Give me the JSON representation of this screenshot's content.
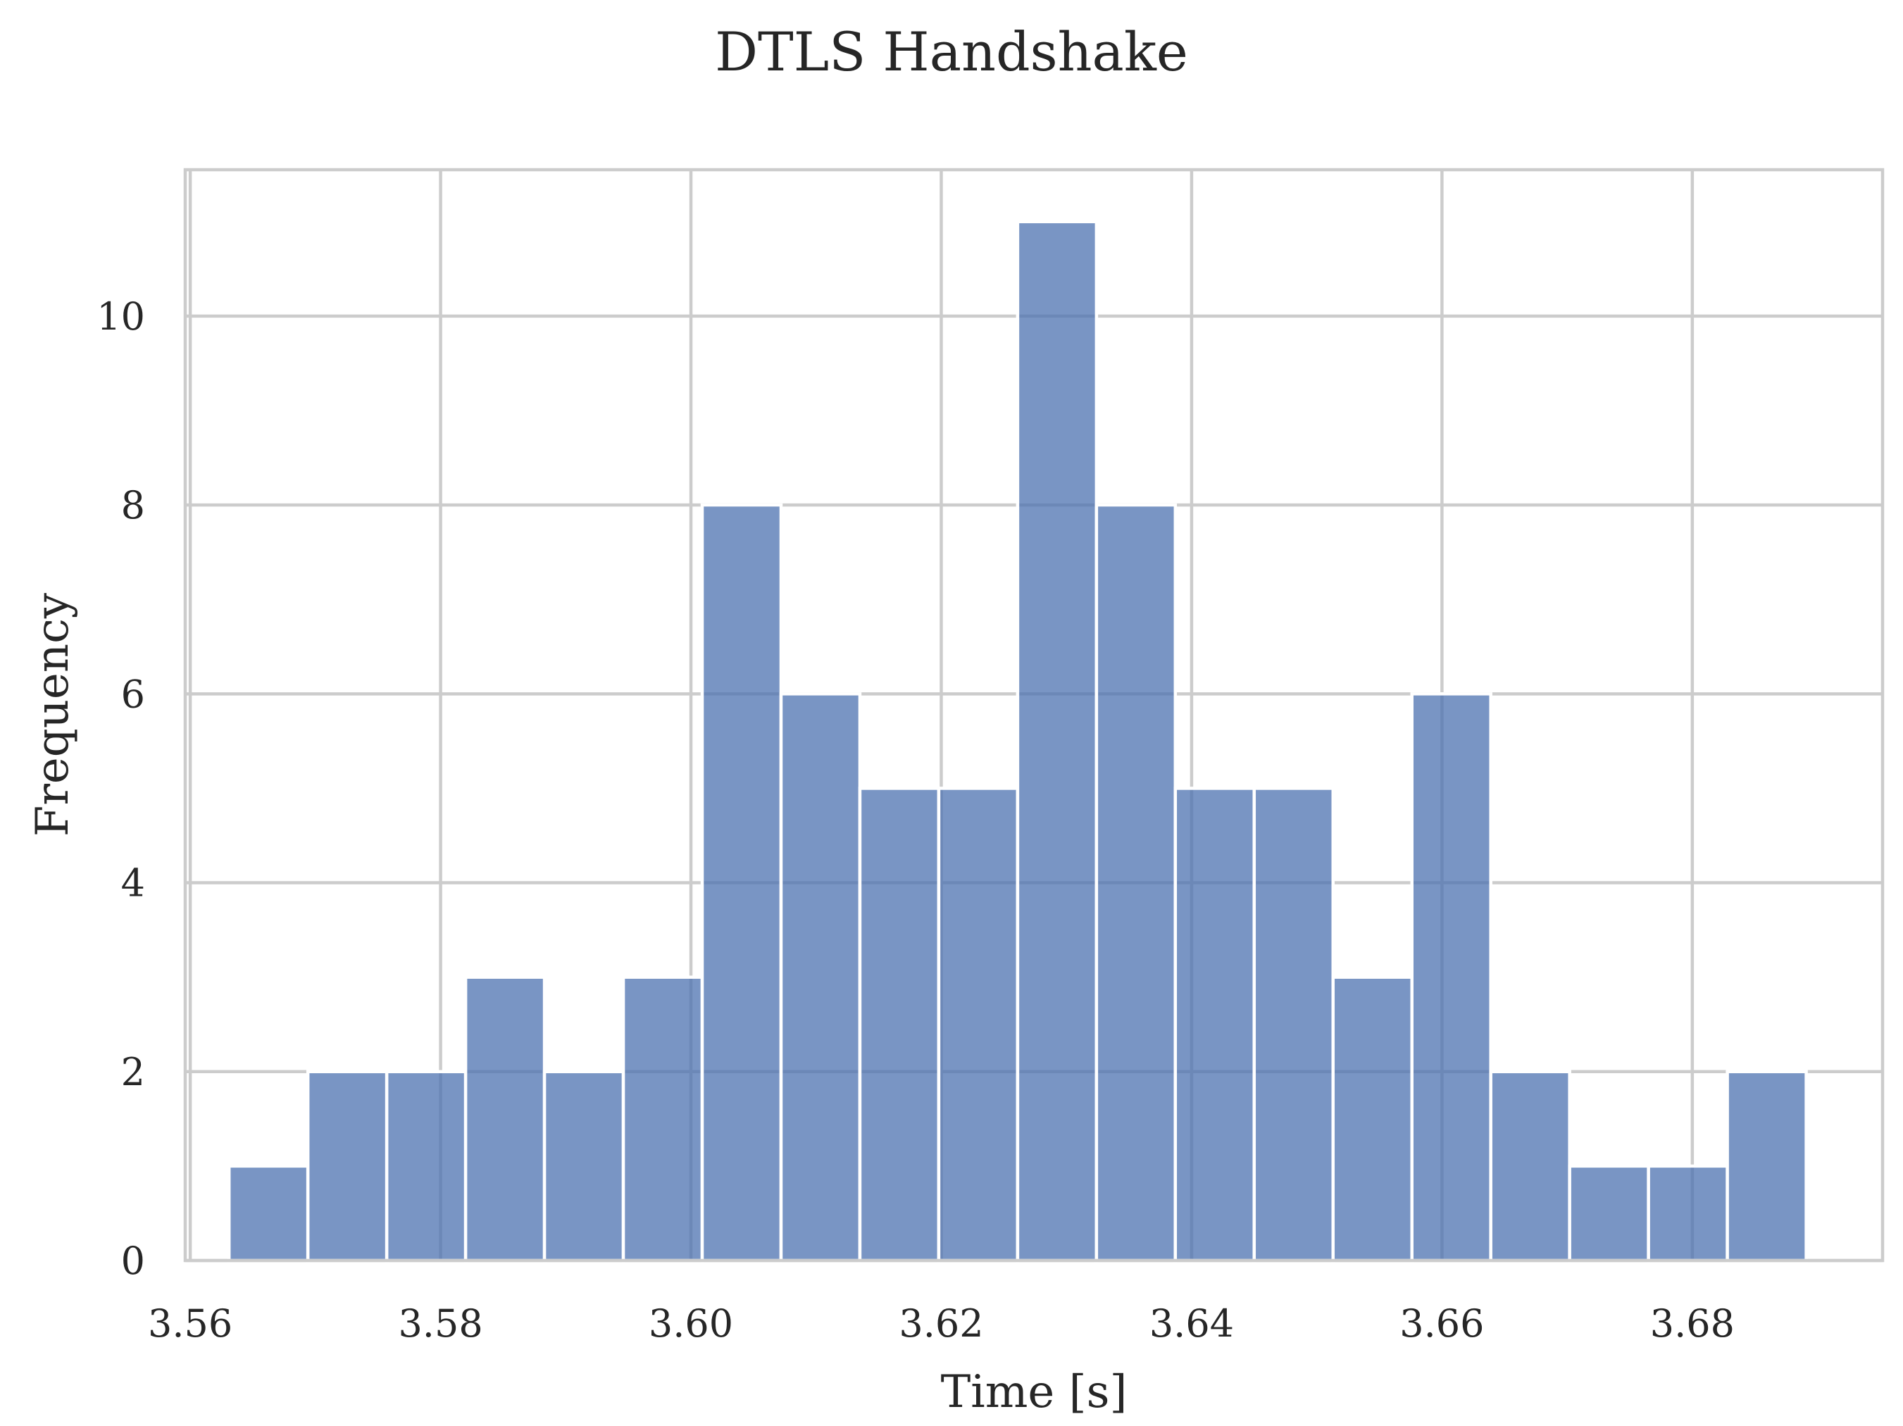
{
  "chart_data": {
    "type": "bar",
    "title": "DTLS Handshake",
    "xlabel": "Time [s]",
    "ylabel": "Frequency",
    "xlim": [
      3.5596,
      3.6952
    ],
    "ylim": [
      0,
      11.55
    ],
    "xticks": [
      3.56,
      3.58,
      3.6,
      3.62,
      3.64,
      3.66,
      3.68
    ],
    "xtick_labels": [
      "3.56",
      "3.58",
      "3.60",
      "3.62",
      "3.64",
      "3.66",
      "3.68"
    ],
    "yticks": [
      0,
      2,
      4,
      6,
      8,
      10
    ],
    "ytick_labels": [
      "0",
      "2",
      "4",
      "6",
      "8",
      "10"
    ],
    "grid": true,
    "bar_color": "#4c72b0",
    "bins": [
      {
        "x0": 3.5631,
        "x1": 3.5694,
        "count": 1
      },
      {
        "x0": 3.5694,
        "x1": 3.5757,
        "count": 2
      },
      {
        "x0": 3.5757,
        "x1": 3.582,
        "count": 2
      },
      {
        "x0": 3.582,
        "x1": 3.5883,
        "count": 3
      },
      {
        "x0": 3.5883,
        "x1": 3.5946,
        "count": 2
      },
      {
        "x0": 3.5946,
        "x1": 3.6009,
        "count": 3
      },
      {
        "x0": 3.6009,
        "x1": 3.6072,
        "count": 8
      },
      {
        "x0": 3.6072,
        "x1": 3.6135,
        "count": 6
      },
      {
        "x0": 3.6135,
        "x1": 3.6198,
        "count": 5
      },
      {
        "x0": 3.6198,
        "x1": 3.6261,
        "count": 5
      },
      {
        "x0": 3.6261,
        "x1": 3.6324,
        "count": 11
      },
      {
        "x0": 3.6324,
        "x1": 3.6387,
        "count": 8
      },
      {
        "x0": 3.6387,
        "x1": 3.645,
        "count": 5
      },
      {
        "x0": 3.645,
        "x1": 3.6513,
        "count": 5
      },
      {
        "x0": 3.6513,
        "x1": 3.6576,
        "count": 3
      },
      {
        "x0": 3.6576,
        "x1": 3.6639,
        "count": 6
      },
      {
        "x0": 3.6639,
        "x1": 3.6702,
        "count": 2
      },
      {
        "x0": 3.6702,
        "x1": 3.6765,
        "count": 1
      },
      {
        "x0": 3.6765,
        "x1": 3.6828,
        "count": 1
      },
      {
        "x0": 3.6828,
        "x1": 3.6891,
        "count": 2
      }
    ]
  }
}
